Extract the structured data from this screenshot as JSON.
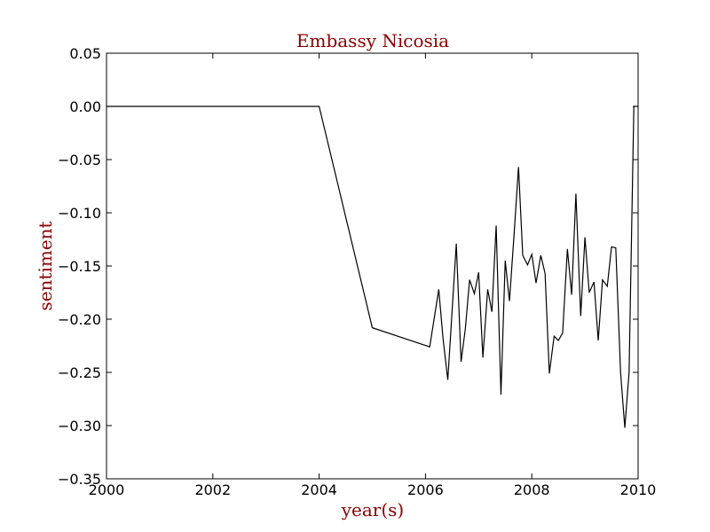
{
  "chart_data": {
    "type": "line",
    "title": "Embassy Nicosia",
    "xlabel": "year(s)",
    "ylabel": "sentiment",
    "xlim": [
      2000,
      2010
    ],
    "ylim": [
      -0.35,
      0.05
    ],
    "x_ticks": [
      2000,
      2002,
      2004,
      2006,
      2008,
      2010
    ],
    "y_ticks": [
      0.05,
      0.0,
      -0.05,
      -0.1,
      -0.15,
      -0.2,
      -0.25,
      -0.3,
      -0.35
    ],
    "x_tick_labels": [
      "2000",
      "2002",
      "2004",
      "2006",
      "2008",
      "2010"
    ],
    "y_tick_labels": [
      "0.05",
      "0.00",
      "−0.05",
      "−0.10",
      "−0.15",
      "−0.20",
      "−0.25",
      "−0.30",
      "−0.35"
    ],
    "grid": false,
    "line_color": "#000000",
    "title_color": "#8b0000",
    "series": [
      {
        "x": [
          2000.0,
          2004.0,
          2005.0,
          2006.08,
          2006.25,
          2006.33,
          2006.42,
          2006.58,
          2006.67,
          2006.75,
          2006.83,
          2006.92,
          2007.0,
          2007.08,
          2007.17,
          2007.25,
          2007.33,
          2007.42,
          2007.5,
          2007.58,
          2007.67,
          2007.75,
          2007.83,
          2007.92,
          2008.0,
          2008.08,
          2008.17,
          2008.25,
          2008.33,
          2008.42,
          2008.5,
          2008.58,
          2008.67,
          2008.75,
          2008.83,
          2008.92,
          2009.0,
          2009.08,
          2009.17,
          2009.25,
          2009.33,
          2009.42,
          2009.5,
          2009.58,
          2009.67,
          2009.75,
          2009.83,
          2009.92,
          2010.0
        ],
        "y": [
          0.0,
          0.0,
          -0.208,
          -0.226,
          -0.172,
          -0.218,
          -0.257,
          -0.129,
          -0.24,
          -0.209,
          -0.163,
          -0.176,
          -0.156,
          -0.236,
          -0.172,
          -0.193,
          -0.112,
          -0.271,
          -0.145,
          -0.183,
          -0.118,
          -0.057,
          -0.14,
          -0.149,
          -0.139,
          -0.166,
          -0.14,
          -0.157,
          -0.251,
          -0.216,
          -0.22,
          -0.213,
          -0.134,
          -0.177,
          -0.082,
          -0.197,
          -0.123,
          -0.175,
          -0.165,
          -0.22,
          -0.163,
          -0.169,
          -0.132,
          -0.133,
          -0.25,
          -0.302,
          -0.25,
          0.0,
          0.0
        ]
      }
    ]
  }
}
